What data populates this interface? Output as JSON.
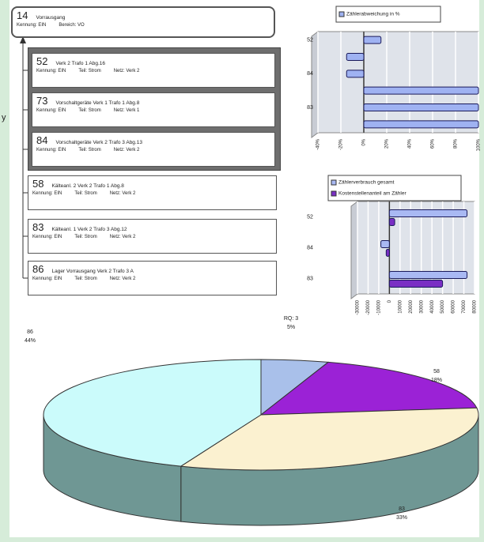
{
  "margin_text": "y",
  "tree": {
    "root": {
      "id": "14",
      "title": "Vorrausgang",
      "fields": [
        "Kennung: EIN",
        "Bereich: VO"
      ]
    },
    "children": [
      {
        "id": "52",
        "title": "Verk 2 Trafo 1 Abg.16",
        "fields": [
          "Kennung: EIN",
          "Teil: Strom",
          "Netz: Verk 2"
        ],
        "highlighted": true
      },
      {
        "id": "73",
        "title": "Vorschaltgeräte Verk 1 Trafo 1 Abg.8",
        "fields": [
          "Kennung: EIN",
          "Teil: Strom",
          "Netz: Verk 1"
        ],
        "highlighted": true
      },
      {
        "id": "84",
        "title": "Vorschaltgeräte Verk 2 Trafo 3 Abg.13",
        "fields": [
          "Kennung: EIN",
          "Teil: Strom",
          "Netz: Verk 2"
        ],
        "highlighted": true
      },
      {
        "id": "58",
        "title": "Kälteanl. 2 Verk 2 Trafo 1 Abg.8",
        "fields": [
          "Kennung: EIN",
          "Teil: Strom",
          "Netz: Verk 2"
        ],
        "highlighted": false
      },
      {
        "id": "83",
        "title": "Kälteanl. 1 Verk 2 Trafo 3 Abg.12",
        "fields": [
          "Kennung: EIN",
          "Teil: Strom",
          "Netz: Verk 2"
        ],
        "highlighted": false
      },
      {
        "id": "86",
        "title": "Lager Vorrausgang Verk 2 Trafo 3 A",
        "fields": [
          "Kennung: EIN",
          "Teil: Strom",
          "Netz: Verk 2"
        ],
        "highlighted": false
      }
    ]
  },
  "chart_data": [
    {
      "type": "hbar",
      "categories": [
        "52",
        null,
        "84",
        null,
        "83",
        null
      ],
      "series": [
        {
          "name": "Zählerabweichung in %",
          "color": "#9fb2f2",
          "values": [
            15,
            -15,
            -15,
            100,
            100,
            100
          ]
        }
      ],
      "xlim": [
        -40,
        100
      ],
      "xticks": [
        {
          "value": -40,
          "label": "-40%"
        },
        {
          "value": -20,
          "label": "-20%"
        },
        {
          "value": 0,
          "label": "0%"
        },
        {
          "value": 20,
          "label": "20%"
        },
        {
          "value": 40,
          "label": "40%"
        },
        {
          "value": 60,
          "label": "60%"
        },
        {
          "value": 80,
          "label": "80%"
        },
        {
          "value": 100,
          "label": "100%"
        }
      ],
      "grid": true
    },
    {
      "type": "hbar",
      "categories": [
        "52",
        "84",
        "83"
      ],
      "series": [
        {
          "name": "Zählerverbrauch gesamt",
          "color": "#a9b9f3",
          "values": [
            73000,
            -8000,
            73000
          ]
        },
        {
          "name": "Kostenstellenanteil am Zähler",
          "color": "#7a2fc4",
          "values": [
            5000,
            -3000,
            50000
          ]
        }
      ],
      "xlim": [
        -30000,
        80000
      ],
      "xticks": [
        -30000,
        -20000,
        -10000,
        0,
        10000,
        20000,
        30000,
        40000,
        50000,
        60000,
        70000,
        80000
      ],
      "grid": true
    },
    {
      "type": "pie",
      "categories": [
        "RQ: 3",
        "58",
        "83",
        "86"
      ],
      "values": [
        5,
        18,
        33,
        44
      ],
      "value_labels": [
        "5%",
        "18%",
        "33%",
        "44%"
      ],
      "colors": [
        "#a9c0ea",
        "#9b22d6",
        "#fbf1d0",
        "#cbfbfb"
      ]
    }
  ]
}
